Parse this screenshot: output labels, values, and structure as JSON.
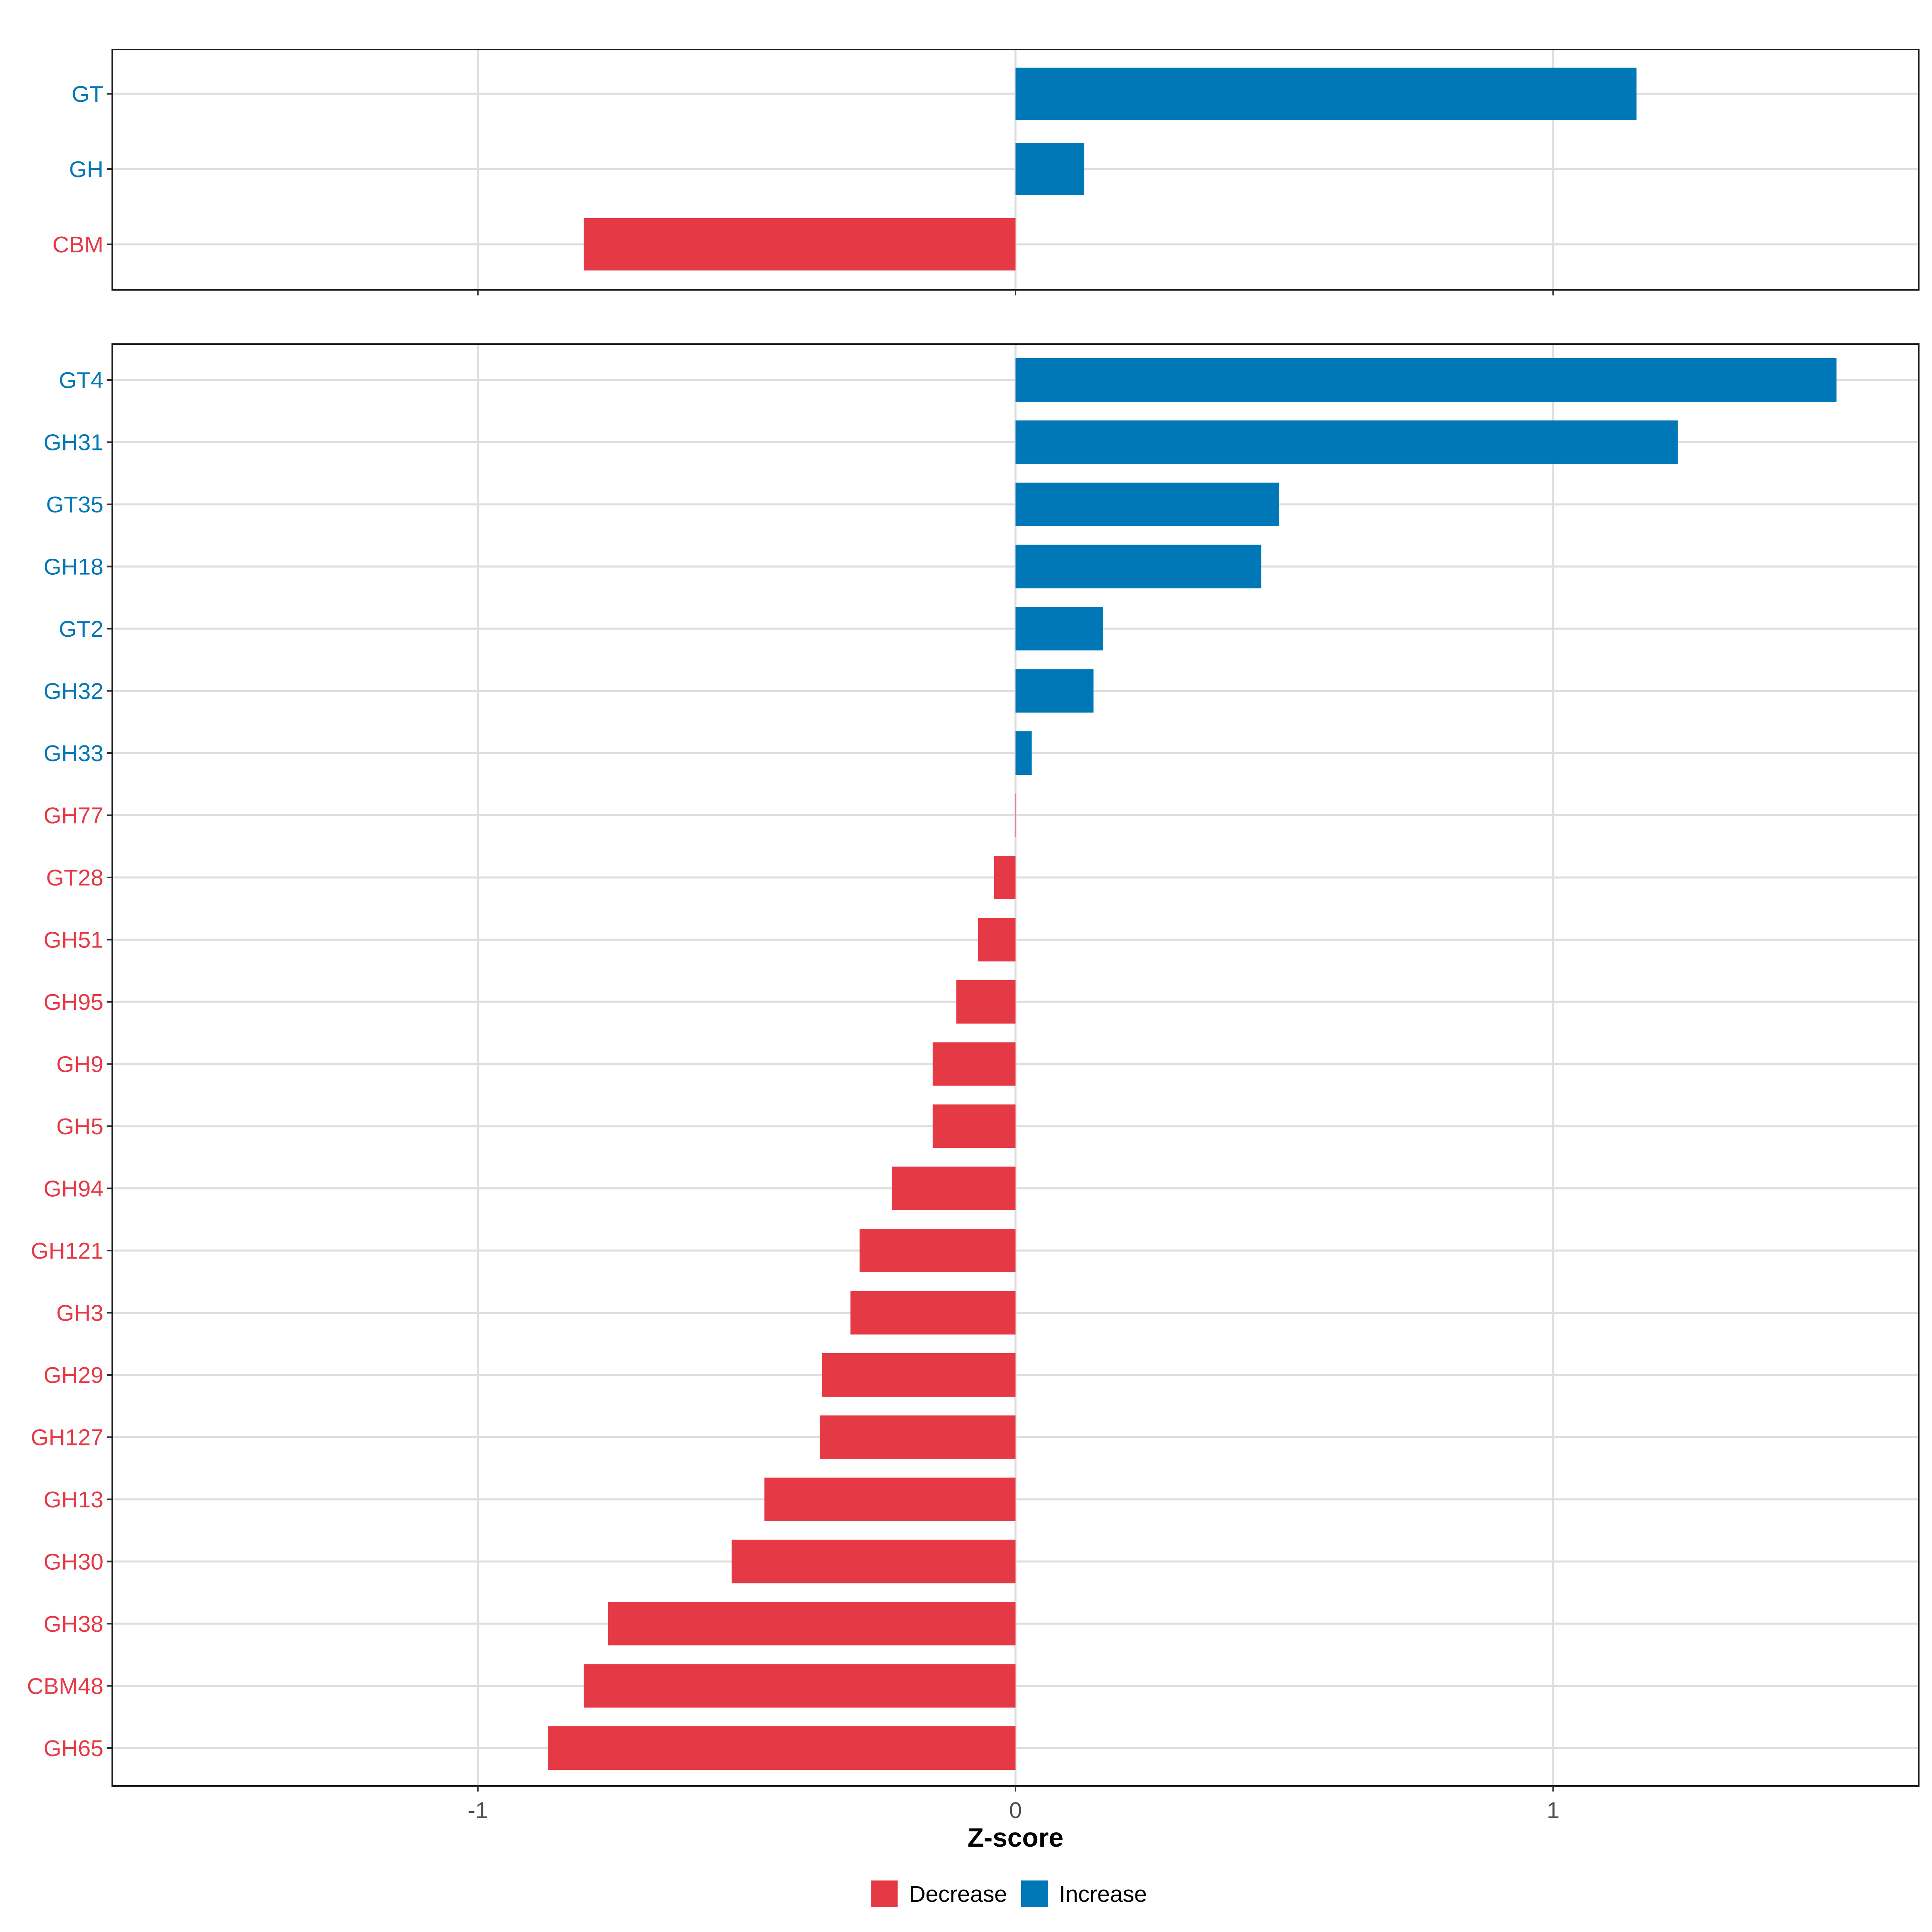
{
  "chart_data": {
    "type": "bar",
    "orientation": "horizontal",
    "xlabel": "Z-score",
    "xlim": [
      -1.68,
      1.68
    ],
    "x_ticks": [
      {
        "value": -1,
        "label": "-1"
      },
      {
        "value": 0,
        "label": "0"
      },
      {
        "value": 1,
        "label": "1"
      }
    ],
    "colors": {
      "Decrease": "#E63946",
      "Increase": "#0077B6"
    },
    "grid": true,
    "legend": {
      "position": "bottom",
      "entries": [
        {
          "name": "Decrease",
          "color": "#E63946"
        },
        {
          "name": "Increase",
          "color": "#0077B6"
        }
      ]
    },
    "panels": [
      {
        "name": "class",
        "categories": [
          "GT",
          "GH",
          "CBM"
        ],
        "values": [
          1.155,
          0.128,
          -0.803
        ]
      },
      {
        "name": "family",
        "categories": [
          "GT4",
          "GH31",
          "GT35",
          "GH18",
          "GT2",
          "GH32",
          "GH33",
          "GH77",
          "GT28",
          "GH51",
          "GH95",
          "GH9",
          "GH5",
          "GH94",
          "GH121",
          "GH3",
          "GH29",
          "GH127",
          "GH13",
          "GH30",
          "GH38",
          "CBM48",
          "GH65"
        ],
        "values": [
          1.527,
          1.232,
          0.49,
          0.457,
          0.163,
          0.145,
          0.03,
          0.0,
          -0.04,
          -0.07,
          -0.11,
          -0.154,
          -0.154,
          -0.23,
          -0.29,
          -0.307,
          -0.36,
          -0.364,
          -0.467,
          -0.528,
          -0.758,
          -0.803,
          -0.87
        ]
      }
    ]
  }
}
